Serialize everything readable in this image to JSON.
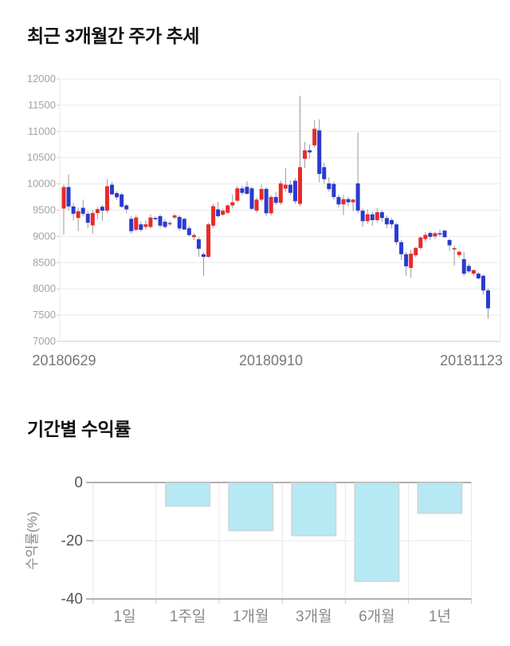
{
  "titles": {
    "price_trend": "최근 3개월간 주가 추세",
    "period_returns": "기간별 수익률"
  },
  "chart_data": [
    {
      "type": "candlestick",
      "title": "최근 3개월간 주가 추세",
      "x_tick_labels": [
        "20180629",
        "20180910",
        "20181123"
      ],
      "y_ticks": [
        12000,
        11500,
        11000,
        10500,
        10000,
        9500,
        9000,
        8500,
        8000,
        7500,
        7000
      ],
      "ylim": [
        7000,
        12000
      ],
      "grid": true,
      "colors": {
        "up": "#e82a2a",
        "down": "#2b3ad0",
        "wick": "#999999",
        "grid": "#e9e9e9",
        "axis_labels": "#a3a3a3",
        "date_labels": "#777777"
      },
      "candles_ohlc": [
        [
          9530,
          9990,
          9030,
          9940
        ],
        [
          9940,
          10180,
          9500,
          9570
        ],
        [
          9570,
          9640,
          9300,
          9430
        ],
        [
          9350,
          9550,
          9100,
          9480
        ],
        [
          9545,
          9700,
          9380,
          9430
        ],
        [
          9430,
          9480,
          9150,
          9260
        ],
        [
          9210,
          9500,
          9050,
          9445
        ],
        [
          9445,
          9560,
          9330,
          9520
        ],
        [
          9565,
          9600,
          9300,
          9490
        ],
        [
          9490,
          10090,
          9450,
          9955
        ],
        [
          9985,
          10040,
          9790,
          9800
        ],
        [
          9825,
          9860,
          9700,
          9745
        ],
        [
          9800,
          9830,
          9540,
          9565
        ],
        [
          9590,
          9620,
          9440,
          9515
        ],
        [
          9335,
          9390,
          9050,
          9100
        ],
        [
          9125,
          9400,
          9100,
          9360
        ],
        [
          9230,
          9280,
          9090,
          9125
        ],
        [
          9180,
          9300,
          9130,
          9230
        ],
        [
          9180,
          9420,
          9150,
          9360
        ],
        [
          9350,
          9380,
          9300,
          9345
        ],
        [
          9385,
          9420,
          9160,
          9205
        ],
        [
          9280,
          9330,
          9150,
          9180
        ],
        [
          9255,
          9300,
          9200,
          9255
        ],
        [
          9360,
          9430,
          9330,
          9400
        ],
        [
          9370,
          9400,
          9100,
          9150
        ],
        [
          9335,
          9360,
          9120,
          9130
        ],
        [
          9155,
          9200,
          9000,
          9025
        ],
        [
          8985,
          9060,
          8930,
          9025
        ],
        [
          8945,
          8990,
          8610,
          8765
        ],
        [
          8660,
          8700,
          8245,
          8610
        ],
        [
          8610,
          9260,
          8590,
          9230
        ],
        [
          9205,
          9620,
          9160,
          9575
        ],
        [
          9515,
          9660,
          9360,
          9385
        ],
        [
          9412,
          9530,
          9395,
          9490
        ],
        [
          9450,
          9620,
          9430,
          9590
        ],
        [
          9590,
          9800,
          9540,
          9650
        ],
        [
          9680,
          9960,
          9640,
          9915
        ],
        [
          9915,
          9960,
          9780,
          9830
        ],
        [
          9945,
          10050,
          9800,
          9810
        ],
        [
          9915,
          9950,
          9500,
          9525
        ],
        [
          9490,
          9740,
          9450,
          9700
        ],
        [
          9700,
          9990,
          9660,
          9905
        ],
        [
          9905,
          9940,
          9390,
          9440
        ],
        [
          9440,
          9790,
          9400,
          9750
        ],
        [
          9750,
          9850,
          9600,
          9640
        ],
        [
          9640,
          10060,
          9600,
          10010
        ],
        [
          9910,
          10300,
          9850,
          9985
        ],
        [
          9985,
          10070,
          9780,
          9830
        ],
        [
          10060,
          10110,
          9620,
          9670
        ],
        [
          9620,
          11680,
          9575,
          10320
        ],
        [
          10480,
          10800,
          10300,
          10640
        ],
        [
          10640,
          10750,
          10480,
          10600
        ],
        [
          10735,
          11210,
          10690,
          11050
        ],
        [
          11020,
          11230,
          10030,
          10190
        ],
        [
          10320,
          10400,
          10010,
          10090
        ],
        [
          10010,
          10130,
          9855,
          9900
        ],
        [
          10000,
          10040,
          9700,
          9750
        ],
        [
          9750,
          9800,
          9555,
          9610
        ],
        [
          9610,
          9790,
          9405,
          9710
        ],
        [
          9710,
          9760,
          9580,
          9650
        ],
        [
          9650,
          9720,
          9480,
          9700
        ],
        [
          10010,
          10980,
          9440,
          9490
        ],
        [
          9490,
          9530,
          9180,
          9290
        ],
        [
          9290,
          9520,
          9240,
          9420
        ],
        [
          9420,
          9480,
          9200,
          9310
        ],
        [
          9310,
          9540,
          9260,
          9460
        ],
        [
          9460,
          9500,
          9280,
          9350
        ],
        [
          9350,
          9400,
          9150,
          9230
        ],
        [
          9310,
          9350,
          9150,
          9230
        ],
        [
          9230,
          9260,
          8840,
          8890
        ],
        [
          8890,
          8930,
          8550,
          8660
        ],
        [
          8660,
          8700,
          8250,
          8430
        ],
        [
          8400,
          8740,
          8210,
          8670
        ],
        [
          8640,
          8800,
          8600,
          8780
        ],
        [
          8780,
          9000,
          8740,
          8980
        ],
        [
          8950,
          9080,
          8890,
          9030
        ],
        [
          9065,
          9100,
          8930,
          8990
        ],
        [
          9000,
          9090,
          8950,
          9060
        ],
        [
          9060,
          9130,
          8990,
          9040
        ],
        [
          9110,
          9130,
          8970,
          8985
        ],
        [
          8930,
          8960,
          8720,
          8830
        ],
        [
          8750,
          8820,
          8440,
          8775
        ],
        [
          8645,
          8730,
          8600,
          8707
        ],
        [
          8565,
          8700,
          8240,
          8290
        ],
        [
          8437,
          8480,
          8300,
          8333
        ],
        [
          8290,
          8360,
          8250,
          8359
        ],
        [
          8290,
          8320,
          8180,
          8200
        ],
        [
          8250,
          8270,
          7890,
          7970
        ],
        [
          7970,
          8010,
          7430,
          7630
        ]
      ]
    },
    {
      "type": "bar",
      "title": "기간별 수익률",
      "categories": [
        "1일",
        "1주일",
        "1개월",
        "3개월",
        "6개월",
        "1년"
      ],
      "values": [
        0,
        -8.1,
        -16.5,
        -18.2,
        -33.9,
        -10.5
      ],
      "ylabel": "수익률(%)",
      "xlabel": "",
      "y_ticks": [
        0,
        -20,
        -40
      ],
      "ylim": [
        -40,
        0
      ],
      "grid": true,
      "legend": false,
      "colors": {
        "bar_fill": "#b7e9f4",
        "bar_border": "#cbd9dd",
        "zero_line": "#b0b0b0",
        "grid": "#e7e7e7",
        "tick_labels": "#555555",
        "category_labels": "#888888",
        "ylabel_color": "#888888"
      }
    }
  ]
}
